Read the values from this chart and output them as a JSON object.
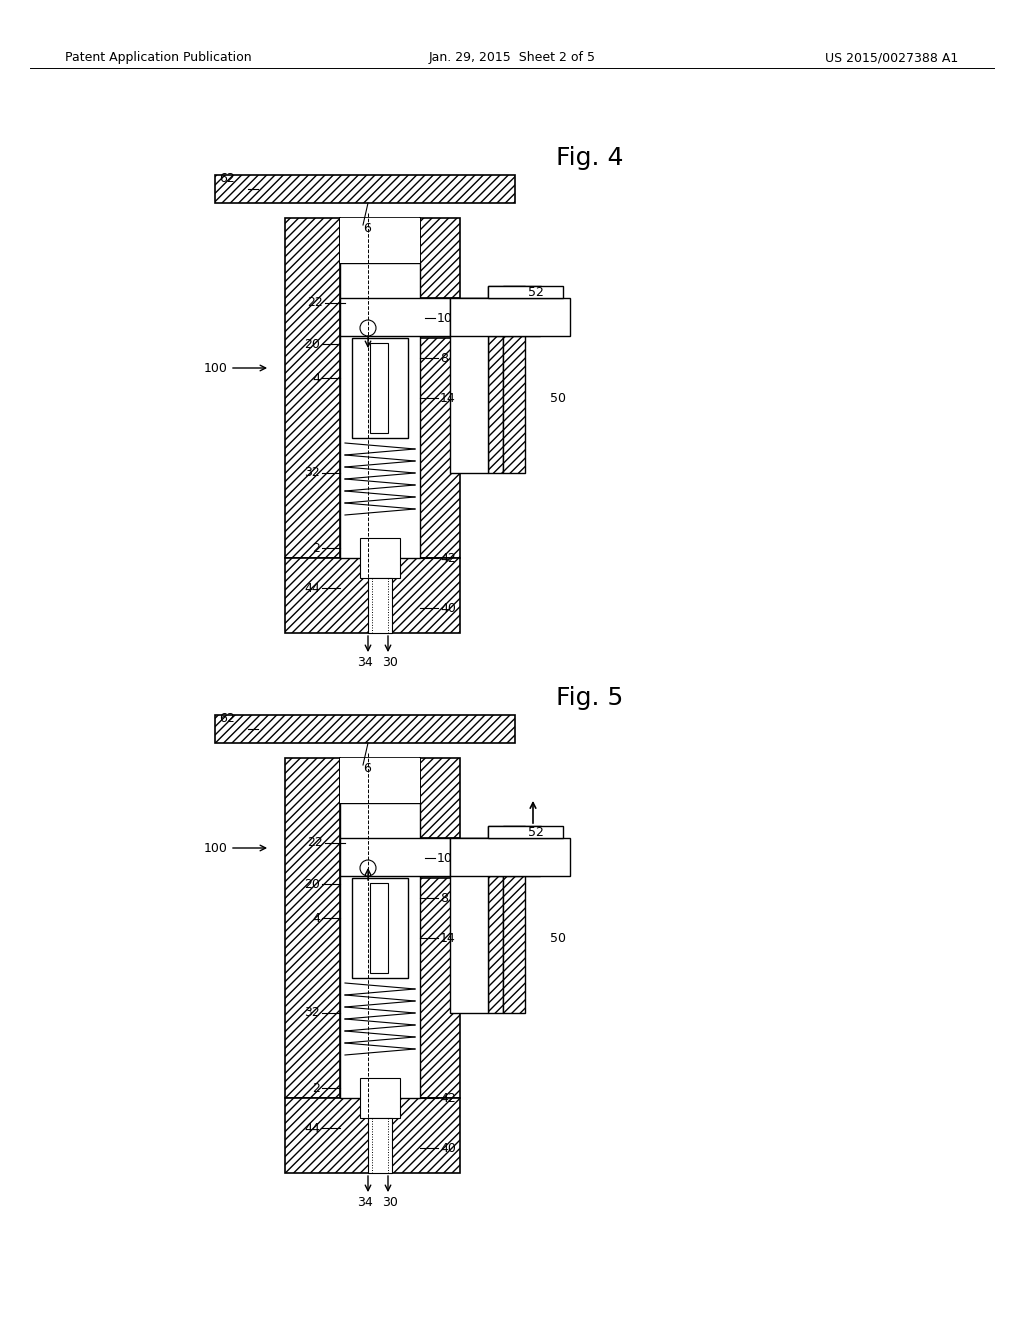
{
  "background_color": "#ffffff",
  "header_left": "Patent Application Publication",
  "header_center": "Jan. 29, 2015  Sheet 2 of 5",
  "header_right": "US 2015/0027388 A1",
  "fig4_label": "Fig. 4",
  "fig5_label": "Fig. 5",
  "line_color": "#000000",
  "font_size_header": 9,
  "font_size_label": 9,
  "font_size_fig": 16
}
